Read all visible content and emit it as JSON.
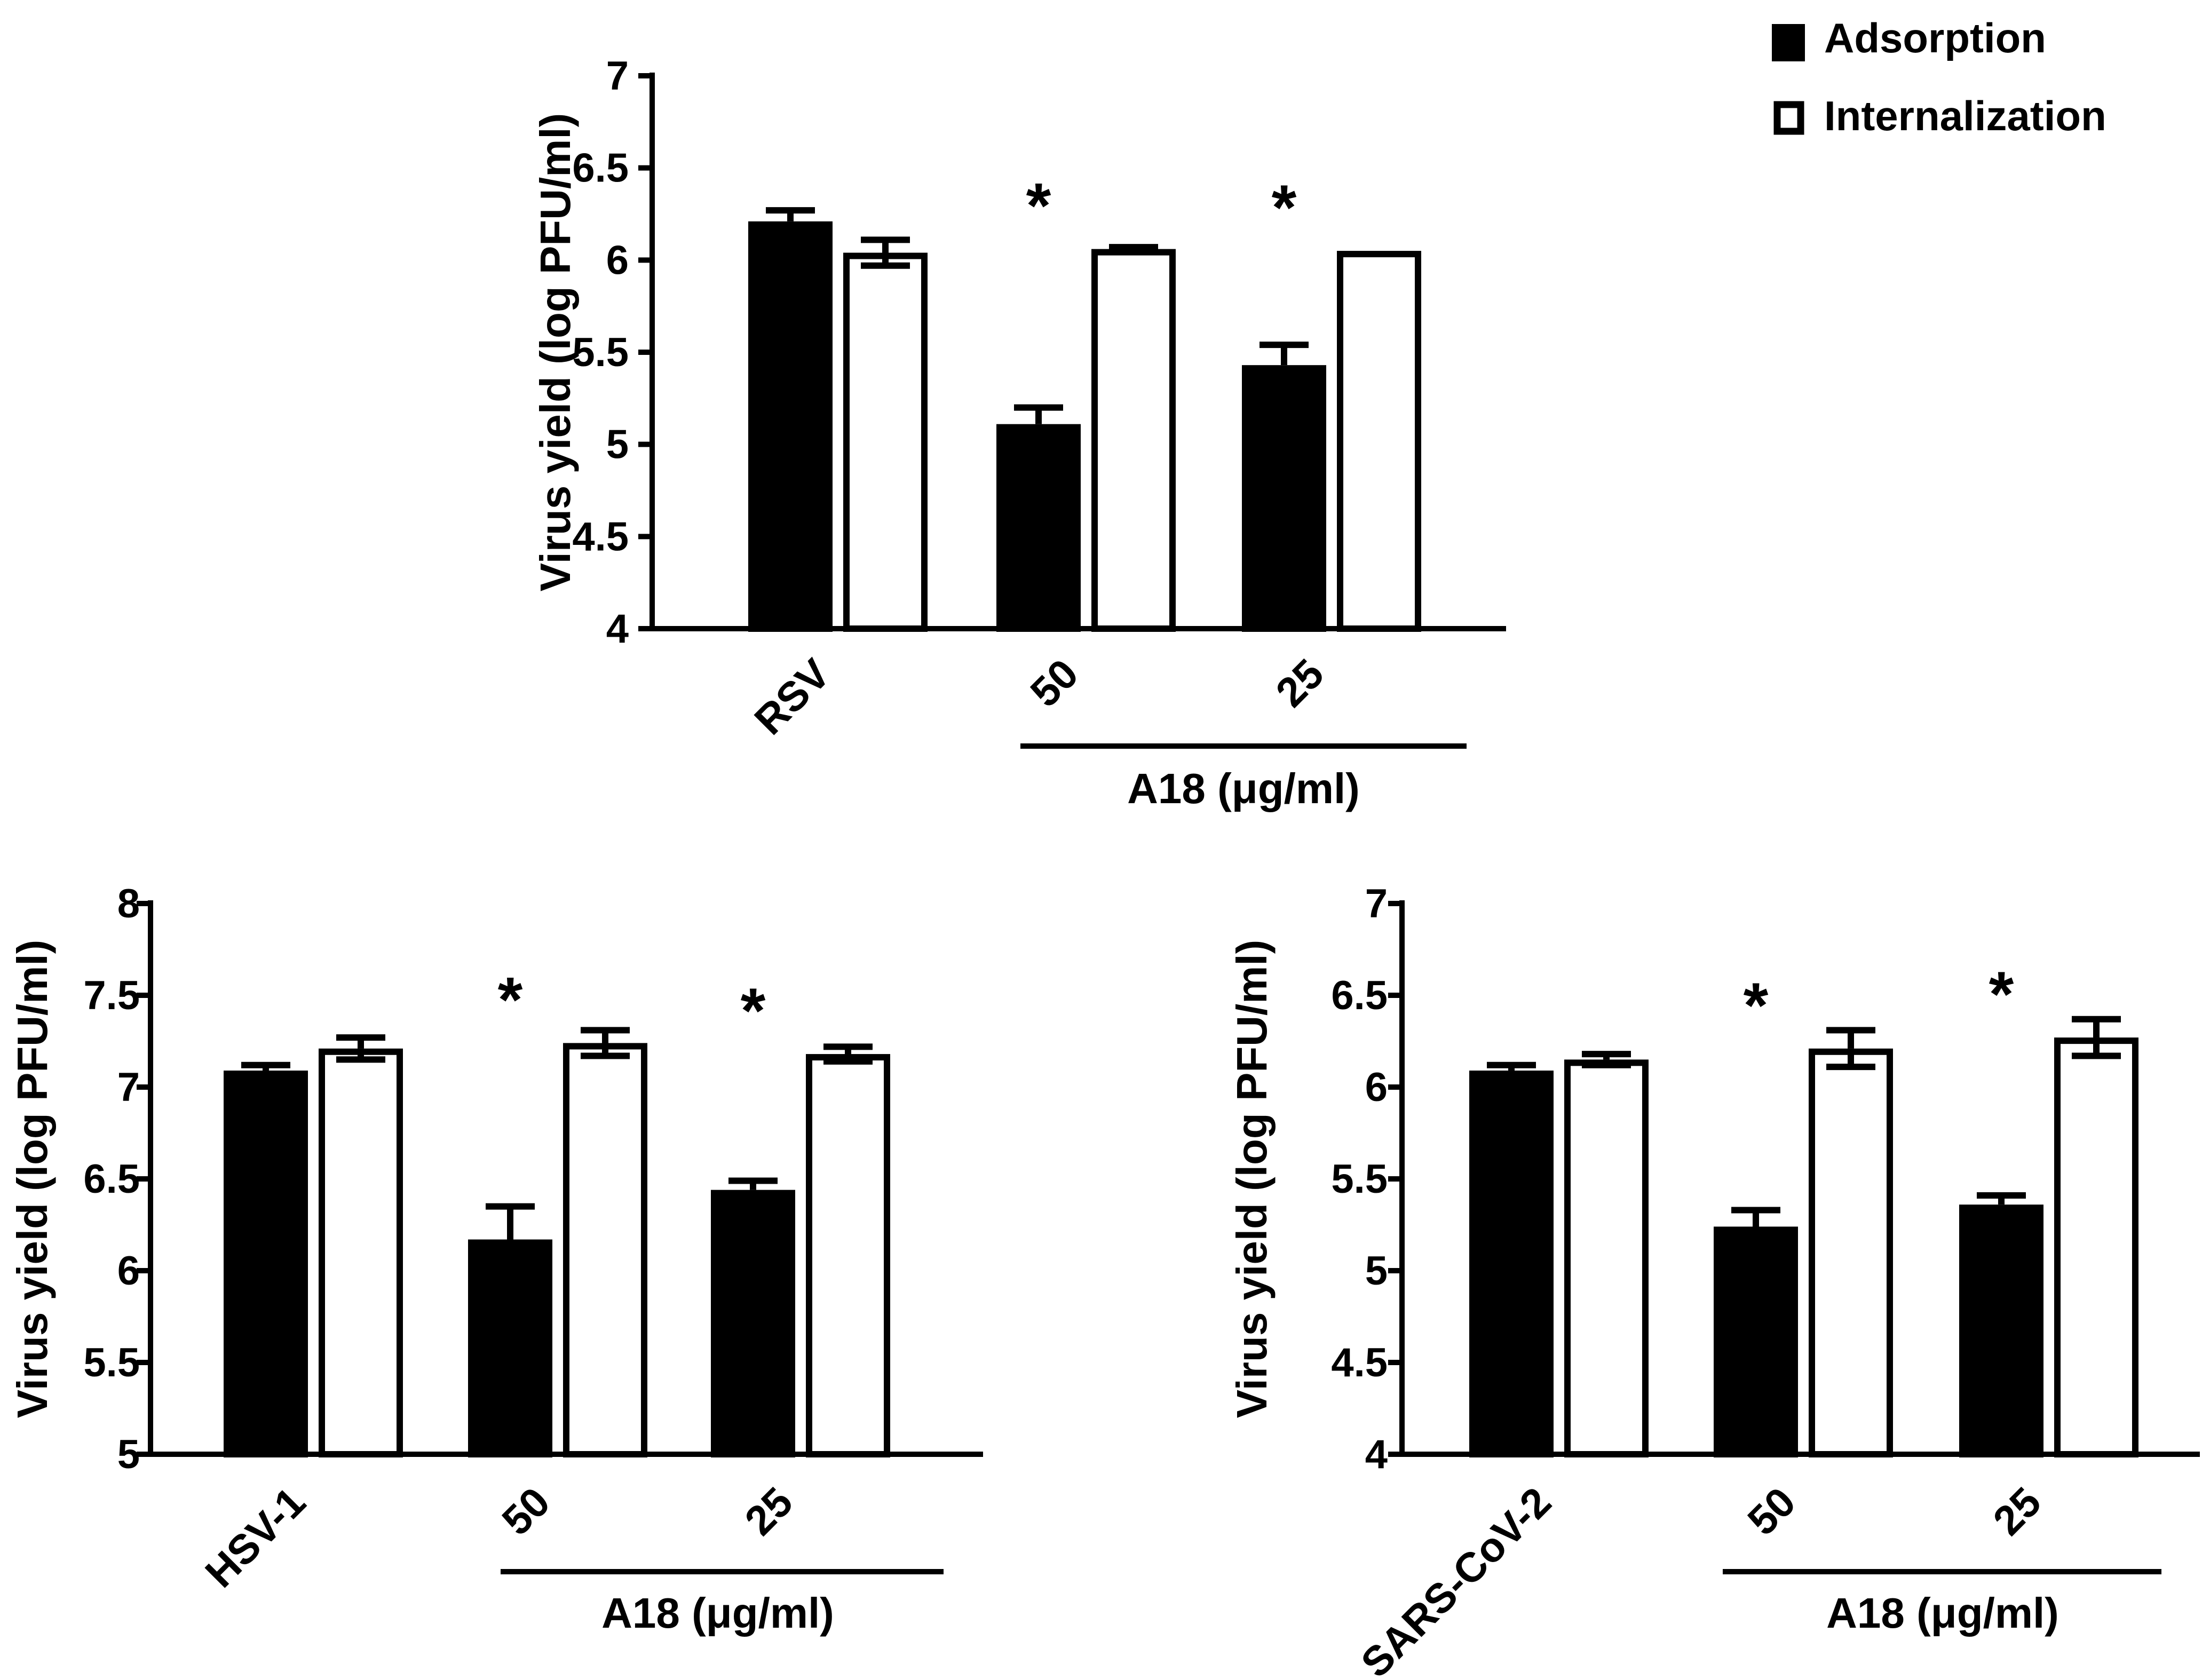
{
  "legend": {
    "items": [
      {
        "label": "Adsorption",
        "fill": "#000000"
      },
      {
        "label": "Internalization",
        "fill": "#ffffff"
      }
    ]
  },
  "colors": {
    "adsorption": "#000000",
    "internalization": "#ffffff",
    "stroke": "#000000"
  },
  "chart_data": [
    {
      "type": "bar",
      "id": "rsv",
      "title": "",
      "ylabel": "Virus yield (log PFU/ml)",
      "xlabel": "",
      "ylim": [
        4,
        7
      ],
      "yticks": [
        "4",
        "4.5",
        "5",
        "5.5",
        "6",
        "6.5",
        "7"
      ],
      "categories": [
        "RSV",
        "50",
        "25"
      ],
      "group_label": "A18 (μg/ml)",
      "series": [
        {
          "name": "Adsorption",
          "values": [
            6.21,
            5.11,
            5.43
          ],
          "errors": [
            0.06,
            0.09,
            0.11
          ]
        },
        {
          "name": "Internalization",
          "values": [
            6.04,
            6.06,
            6.05
          ],
          "errors": [
            0.07,
            0.01,
            0.0
          ]
        }
      ],
      "significance": [
        "",
        "*",
        "*"
      ]
    },
    {
      "type": "bar",
      "id": "hsv",
      "title": "",
      "ylabel": "Virus yield (log PFU/ml)",
      "xlabel": "",
      "ylim": [
        5,
        8
      ],
      "yticks": [
        "5",
        "5.5",
        "6",
        "6.5",
        "7",
        "7.5",
        "8"
      ],
      "categories": [
        "HSV-1",
        "50",
        "25"
      ],
      "group_label": "A18 (μg/ml)",
      "series": [
        {
          "name": "Adsorption",
          "values": [
            7.09,
            6.17,
            6.44
          ],
          "errors": [
            0.03,
            0.18,
            0.05
          ]
        },
        {
          "name": "Internalization",
          "values": [
            7.21,
            7.24,
            7.18
          ],
          "errors": [
            0.06,
            0.07,
            0.04
          ]
        }
      ],
      "significance": [
        "",
        "*",
        "*"
      ]
    },
    {
      "type": "bar",
      "id": "sars",
      "title": "",
      "ylabel": "Virus yield (log PFU/ml)",
      "xlabel": "",
      "ylim": [
        4,
        7
      ],
      "yticks": [
        "4",
        "4.5",
        "5",
        "5.5",
        "6",
        "6.5",
        "7"
      ],
      "categories": [
        "SARS-CoV-2",
        "50",
        "25"
      ],
      "group_label": "A18 (μg/ml)",
      "series": [
        {
          "name": "Adsorption",
          "values": [
            6.09,
            5.24,
            5.36
          ],
          "errors": [
            0.03,
            0.09,
            0.05
          ]
        },
        {
          "name": "Internalization",
          "values": [
            6.15,
            6.21,
            6.27
          ],
          "errors": [
            0.03,
            0.1,
            0.1
          ]
        }
      ],
      "significance": [
        "",
        "*",
        "*"
      ]
    }
  ]
}
